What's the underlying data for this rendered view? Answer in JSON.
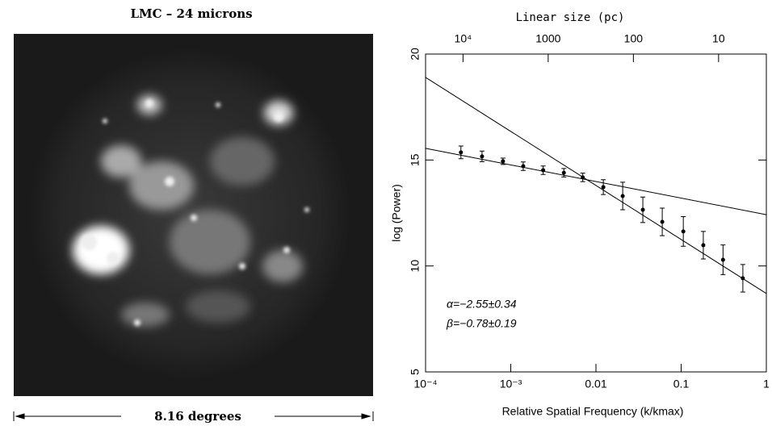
{
  "image_panel": {
    "title": "LMC – 24 microns",
    "scale_label": "8.16 degrees"
  },
  "chart_data": {
    "type": "errorbar",
    "x2label": "Linear size (pc)",
    "ylabel": "log (Power)",
    "xlabel": "Relative Spatial Frequency (k/kmax)",
    "xlog": true,
    "xlim": [
      0.0001,
      1
    ],
    "xticks": [
      {
        "value": 0.0001,
        "label": "10⁻⁴"
      },
      {
        "value": 0.001,
        "label": "10⁻³"
      },
      0.01,
      0.1,
      1
    ],
    "x2log": true,
    "x2lim": [
      27500,
      2.75
    ],
    "x2ticks": [
      {
        "value": 10000,
        "label": "10⁴"
      },
      1000,
      100,
      10
    ],
    "ylim": [
      5,
      20
    ],
    "yticks": [
      5,
      10,
      15,
      20
    ],
    "x": [
      0.00026,
      0.00046,
      0.00081,
      0.0014,
      0.0024,
      0.0042,
      0.007,
      0.0122,
      0.0206,
      0.0355,
      0.06,
      0.106,
      0.182,
      0.31,
      0.53
    ],
    "values": [
      15.36,
      15.17,
      14.94,
      14.71,
      14.52,
      14.4,
      14.18,
      13.72,
      13.3,
      12.65,
      12.08,
      11.63,
      10.98,
      10.29,
      9.42
    ],
    "errors": [
      0.3,
      0.25,
      0.15,
      0.2,
      0.2,
      0.2,
      0.2,
      0.35,
      0.65,
      0.6,
      0.65,
      0.7,
      0.65,
      0.7,
      0.65
    ],
    "color": "#000000",
    "fit_lines": [
      {
        "x": [
          0.0001,
          1
        ],
        "values": [
          15.55,
          12.42
        ]
      },
      {
        "x": [
          0.0001,
          1
        ],
        "values": [
          18.9,
          8.7
        ]
      }
    ],
    "annotations": [
      "α=−2.55±0.34",
      "β=−0.78±0.19"
    ]
  }
}
